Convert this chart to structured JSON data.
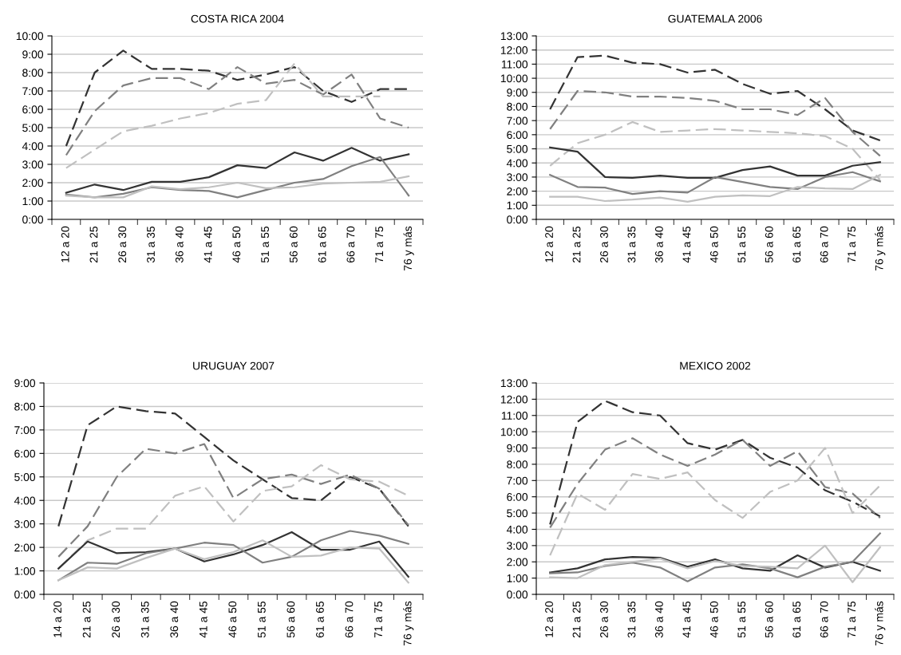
{
  "chart_data": [
    {
      "type": "line",
      "title": "COSTA RICA 2004",
      "grid": "y",
      "legend": false,
      "marker": "none",
      "categories": [
        "12 a 20",
        "21 a 25",
        "26 a 30",
        "31 a 35",
        "36 a 40",
        "41 a 45",
        "46 a 50",
        "51 a 55",
        "56 a 60",
        "61 a 65",
        "66 a 70",
        "71 a 75",
        "76 y más"
      ],
      "ylim": [
        0,
        10
      ],
      "yticks": [
        {
          "value": 0,
          "label": "0:00"
        },
        {
          "value": 1,
          "label": "1:00"
        },
        {
          "value": 2,
          "label": "2:00"
        },
        {
          "value": 3,
          "label": "3:00"
        },
        {
          "value": 4,
          "label": "4:00"
        },
        {
          "value": 5,
          "label": "5:00"
        },
        {
          "value": 6,
          "label": "6:00"
        },
        {
          "value": 7,
          "label": "7:00"
        },
        {
          "value": 8,
          "label": "8:00"
        },
        {
          "value": 9,
          "label": "9:00"
        },
        {
          "value": 10,
          "label": "10:00"
        }
      ],
      "series": [
        {
          "color": "#333333",
          "line_style": "dashed",
          "values": [
            4.0,
            8.0,
            9.2,
            8.2,
            8.2,
            8.1,
            7.6,
            7.9,
            8.3,
            7.0,
            6.4,
            7.1,
            7.1
          ]
        },
        {
          "color": "#808080",
          "line_style": "dashed",
          "values": [
            3.5,
            5.9,
            7.3,
            7.7,
            7.7,
            7.1,
            8.3,
            7.4,
            7.6,
            6.8,
            7.9,
            5.5,
            5.0
          ]
        },
        {
          "color": "#c0c0c0",
          "line_style": "dashed",
          "values": [
            2.8,
            3.8,
            4.8,
            5.1,
            5.5,
            5.8,
            6.3,
            6.5,
            8.5,
            6.7,
            6.7,
            6.7,
            null
          ]
        },
        {
          "color": "#333333",
          "line_style": "solid",
          "values": [
            1.45,
            1.9,
            1.6,
            2.05,
            2.05,
            2.3,
            2.95,
            2.8,
            3.65,
            3.2,
            3.9,
            3.2,
            3.55
          ]
        },
        {
          "color": "#808080",
          "line_style": "solid",
          "values": [
            1.35,
            1.2,
            1.4,
            1.75,
            1.6,
            1.55,
            1.2,
            1.6,
            2.0,
            2.2,
            2.9,
            3.4,
            1.3
          ]
        },
        {
          "color": "#c0c0c0",
          "line_style": "solid",
          "values": [
            1.3,
            1.2,
            1.2,
            1.8,
            1.65,
            1.75,
            2.0,
            1.7,
            1.75,
            1.95,
            2.0,
            2.05,
            2.35
          ]
        }
      ]
    },
    {
      "type": "line",
      "title": "GUATEMALA 2006",
      "grid": "y",
      "legend": false,
      "marker": "none",
      "categories": [
        "12 a 20",
        "21 a 25",
        "26 a 30",
        "31 a 35",
        "36 a 40",
        "41 a 45",
        "46 a 50",
        "51 a 55",
        "56 a 60",
        "61 a 65",
        "66 a 70",
        "71 a 75",
        "76 y más"
      ],
      "ylim": [
        0,
        13
      ],
      "yticks": [
        {
          "value": 0,
          "label": "0:00"
        },
        {
          "value": 1,
          "label": "1:00"
        },
        {
          "value": 2,
          "label": "2:00"
        },
        {
          "value": 3,
          "label": "3:00"
        },
        {
          "value": 4,
          "label": "4:00"
        },
        {
          "value": 5,
          "label": "5:00"
        },
        {
          "value": 6,
          "label": "6:00"
        },
        {
          "value": 7,
          "label": "7:00"
        },
        {
          "value": 8,
          "label": "8:00"
        },
        {
          "value": 9,
          "label": "9:00"
        },
        {
          "value": 10,
          "label": "10:00"
        },
        {
          "value": 11,
          "label": "11:00"
        },
        {
          "value": 12,
          "label": "12:00"
        },
        {
          "value": 13,
          "label": "13:00"
        }
      ],
      "series": [
        {
          "color": "#333333",
          "line_style": "dashed",
          "values": [
            7.8,
            11.5,
            11.6,
            11.1,
            11.0,
            10.4,
            10.6,
            9.6,
            8.9,
            9.1,
            7.8,
            6.3,
            5.6
          ]
        },
        {
          "color": "#808080",
          "line_style": "dashed",
          "values": [
            6.4,
            9.1,
            9.0,
            8.7,
            8.7,
            8.6,
            8.4,
            7.8,
            7.8,
            7.4,
            8.6,
            6.2,
            4.5
          ]
        },
        {
          "color": "#c0c0c0",
          "line_style": "dashed",
          "values": [
            3.8,
            5.4,
            6.0,
            6.9,
            6.2,
            6.3,
            6.4,
            6.3,
            6.2,
            6.1,
            5.9,
            5.0,
            2.8
          ]
        },
        {
          "color": "#333333",
          "line_style": "solid",
          "values": [
            5.1,
            4.8,
            3.0,
            2.95,
            3.1,
            2.95,
            2.95,
            3.5,
            3.75,
            3.1,
            3.1,
            3.8,
            4.05
          ]
        },
        {
          "color": "#808080",
          "line_style": "solid",
          "values": [
            3.15,
            2.3,
            2.25,
            1.8,
            2.0,
            1.9,
            3.0,
            2.65,
            2.3,
            2.15,
            3.0,
            3.35,
            2.7
          ]
        },
        {
          "color": "#c0c0c0",
          "line_style": "solid",
          "values": [
            1.6,
            1.6,
            1.3,
            1.4,
            1.55,
            1.25,
            1.6,
            1.7,
            1.65,
            2.3,
            2.2,
            2.15,
            3.15
          ]
        }
      ]
    },
    {
      "type": "line",
      "title": "URUGUAY 2007",
      "grid": "y",
      "legend": false,
      "marker": "none",
      "categories": [
        "14 a 20",
        "21 a 25",
        "26 a 30",
        "31 a 35",
        "36 a 40",
        "41 a 45",
        "46 a 50",
        "51 a 55",
        "56 a 60",
        "61 a 65",
        "66 a 70",
        "71 a 75",
        "76 y más"
      ],
      "ylim": [
        0,
        9
      ],
      "yticks": [
        {
          "value": 0,
          "label": "0:00"
        },
        {
          "value": 1,
          "label": "1:00"
        },
        {
          "value": 2,
          "label": "2:00"
        },
        {
          "value": 3,
          "label": "3:00"
        },
        {
          "value": 4,
          "label": "4:00"
        },
        {
          "value": 5,
          "label": "5:00"
        },
        {
          "value": 6,
          "label": "6:00"
        },
        {
          "value": 7,
          "label": "7:00"
        },
        {
          "value": 8,
          "label": "8:00"
        },
        {
          "value": 9,
          "label": "9:00"
        }
      ],
      "series": [
        {
          "color": "#333333",
          "line_style": "dashed",
          "values": [
            2.9,
            7.2,
            8.0,
            7.8,
            7.7,
            6.7,
            5.7,
            4.9,
            4.1,
            4.0,
            5.0,
            4.5,
            2.9
          ]
        },
        {
          "color": "#808080",
          "line_style": "dashed",
          "values": [
            1.6,
            2.9,
            5.0,
            6.2,
            6.0,
            6.4,
            4.1,
            4.9,
            5.1,
            4.7,
            5.1,
            4.5,
            2.95
          ]
        },
        {
          "color": "#c0c0c0",
          "line_style": "dashed",
          "values": [
            1.1,
            2.3,
            2.8,
            2.8,
            4.2,
            4.6,
            3.1,
            4.4,
            4.6,
            5.5,
            4.9,
            4.8,
            4.2
          ]
        },
        {
          "color": "#333333",
          "line_style": "solid",
          "values": [
            1.1,
            2.25,
            1.75,
            1.8,
            1.95,
            1.4,
            1.7,
            2.1,
            2.65,
            1.9,
            1.9,
            2.25,
            0.75
          ]
        },
        {
          "color": "#808080",
          "line_style": "solid",
          "values": [
            0.6,
            1.35,
            1.3,
            1.75,
            1.95,
            2.2,
            2.1,
            1.35,
            1.6,
            2.3,
            2.7,
            2.5,
            2.15
          ]
        },
        {
          "color": "#c0c0c0",
          "line_style": "solid",
          "values": [
            0.6,
            1.15,
            1.1,
            1.55,
            1.95,
            1.5,
            1.8,
            2.3,
            1.6,
            1.65,
            2.0,
            1.95,
            0.5
          ]
        }
      ]
    },
    {
      "type": "line",
      "title": "MEXICO 2002",
      "grid": "y",
      "legend": false,
      "marker": "none",
      "categories": [
        "12 a 20",
        "21 a 25",
        "26 a 30",
        "31 a 35",
        "36 a 40",
        "41 a 45",
        "46 a 50",
        "51 a 55",
        "56 a 60",
        "61 a 65",
        "66 a 70",
        "71 a 75",
        "76 y más"
      ],
      "ylim": [
        0,
        13
      ],
      "yticks": [
        {
          "value": 0,
          "label": "0:00"
        },
        {
          "value": 1,
          "label": "1:00"
        },
        {
          "value": 2,
          "label": "2:00"
        },
        {
          "value": 3,
          "label": "3:00"
        },
        {
          "value": 4,
          "label": "4:00"
        },
        {
          "value": 5,
          "label": "5:00"
        },
        {
          "value": 6,
          "label": "6:00"
        },
        {
          "value": 7,
          "label": "7:00"
        },
        {
          "value": 8,
          "label": "8:00"
        },
        {
          "value": 9,
          "label": "9:00"
        },
        {
          "value": 10,
          "label": "10:00"
        },
        {
          "value": 11,
          "label": "11:00"
        },
        {
          "value": 12,
          "label": "12:00"
        },
        {
          "value": 13,
          "label": "13:00"
        }
      ],
      "series": [
        {
          "color": "#333333",
          "line_style": "dashed",
          "values": [
            4.3,
            10.6,
            11.9,
            11.2,
            11.0,
            9.3,
            8.9,
            9.5,
            8.4,
            7.8,
            6.4,
            5.7,
            4.8
          ]
        },
        {
          "color": "#808080",
          "line_style": "dashed",
          "values": [
            4.1,
            6.8,
            8.9,
            9.6,
            8.6,
            7.9,
            8.6,
            9.5,
            7.9,
            8.8,
            6.6,
            6.2,
            4.7
          ]
        },
        {
          "color": "#c0c0c0",
          "line_style": "dashed",
          "values": [
            2.4,
            6.2,
            5.2,
            7.4,
            7.1,
            7.5,
            5.8,
            4.7,
            6.3,
            7.0,
            9.0,
            5.0,
            6.7
          ]
        },
        {
          "color": "#333333",
          "line_style": "solid",
          "values": [
            1.35,
            1.6,
            2.15,
            2.3,
            2.25,
            1.7,
            2.15,
            1.6,
            1.45,
            2.4,
            1.65,
            2.0,
            1.45
          ]
        },
        {
          "color": "#808080",
          "line_style": "solid",
          "values": [
            1.3,
            1.35,
            1.75,
            1.95,
            1.65,
            0.8,
            1.65,
            1.85,
            1.6,
            1.05,
            1.7,
            2.0,
            3.75
          ]
        },
        {
          "color": "#c0c0c0",
          "line_style": "solid",
          "values": [
            1.05,
            1.0,
            1.8,
            2.0,
            2.2,
            1.6,
            2.05,
            1.75,
            1.7,
            1.6,
            3.0,
            0.75,
            2.9
          ]
        }
      ]
    }
  ]
}
